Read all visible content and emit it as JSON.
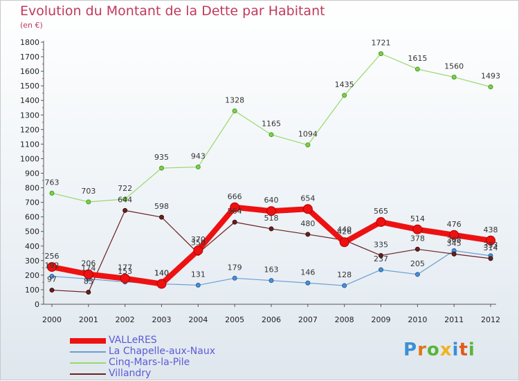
{
  "title": "Evolution du Montant de la Dette par Habitant",
  "subtitle": "(en €)",
  "chart_data": {
    "type": "line",
    "title": "Evolution du Montant de la Dette par Habitant",
    "subtitle": "(en €)",
    "x": [
      "2000",
      "2001",
      "2002",
      "2003",
      "2004",
      "2005",
      "2006",
      "2007",
      "2008",
      "2009",
      "2010",
      "2011",
      "2012"
    ],
    "ylim": [
      0,
      1800
    ],
    "yticks": [
      0,
      100,
      200,
      300,
      400,
      500,
      600,
      700,
      800,
      900,
      1000,
      1100,
      1200,
      1300,
      1400,
      1500,
      1600,
      1700,
      1800
    ],
    "grid": false,
    "legend_position": "bottom-left",
    "series": [
      {
        "name": "VALLeRES",
        "color": "#ee1111",
        "values": [
          256,
          206,
          177,
          140,
          370,
          666,
          640,
          654,
          426,
          565,
          514,
          476,
          438
        ]
      },
      {
        "name": "La Chapelle-aux-Naux",
        "color": "#6a9ed4",
        "values": [
          192,
          174,
          153,
          140,
          131,
          179,
          163,
          146,
          128,
          237,
          205,
          368,
          333
        ]
      },
      {
        "name": "Cinq-Mars-la-Pile",
        "color": "#99d86a",
        "values": [
          763,
          703,
          722,
          935,
          943,
          1328,
          1165,
          1094,
          1435,
          1721,
          1615,
          1560,
          1493
        ]
      },
      {
        "name": "Villandry",
        "color": "#6a1f1f",
        "values": [
          97,
          83,
          644,
          598,
          350,
          564,
          518,
          480,
          440,
          335,
          378,
          345,
          314
        ]
      }
    ]
  },
  "logo": {
    "letters": [
      "P",
      "r",
      "o",
      "x",
      "i",
      "t",
      "i"
    ],
    "colors": [
      "#3a8fd6",
      "#e0761a",
      "#5ab43c",
      "#f0b41e",
      "#3a8fd6",
      "#e05a1a",
      "#5ab43c"
    ]
  }
}
